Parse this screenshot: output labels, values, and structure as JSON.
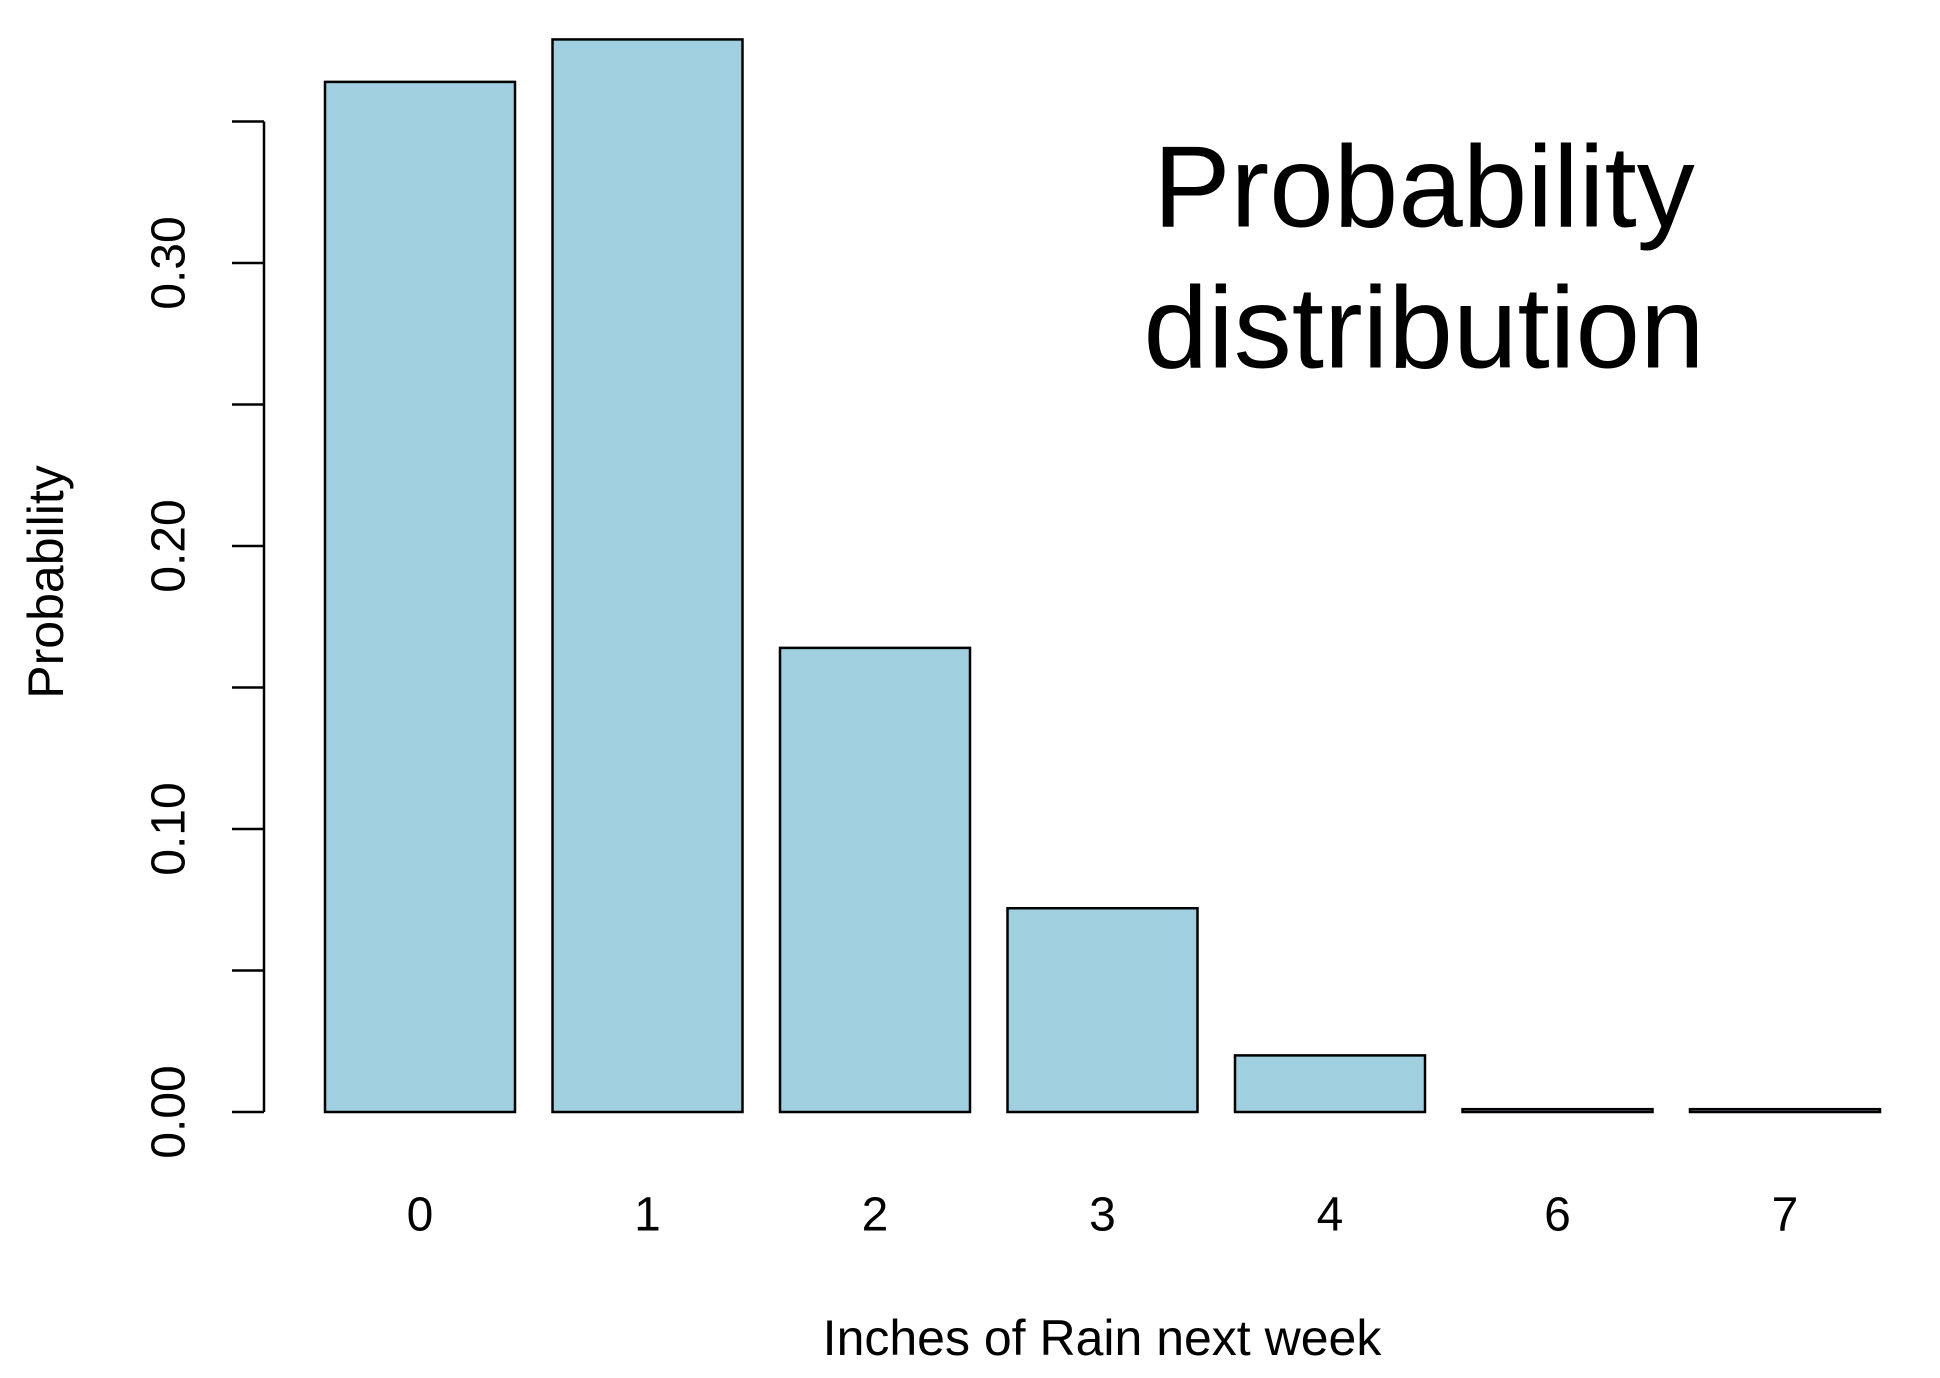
{
  "chart_data": {
    "type": "bar",
    "annotation": [
      "Probability",
      "distribution"
    ],
    "x_label": "Inches of Rain next week",
    "y_label": "Probability",
    "categories": [
      "0",
      "1",
      "2",
      "3",
      "4",
      "6",
      "7"
    ],
    "values": [
      0.364,
      0.379,
      0.164,
      0.072,
      0.02,
      0.001,
      0.001
    ],
    "color": "#a0cfe0",
    "ylim": [
      0,
      0.38
    ],
    "yticks": [
      {
        "value": 0,
        "label": "0.00"
      },
      {
        "value": 0.05,
        "label": null
      },
      {
        "value": 0.1,
        "label": "0.10"
      },
      {
        "value": 0.15,
        "label": null
      },
      {
        "value": 0.2,
        "label": "0.20"
      },
      {
        "value": 0.25,
        "label": null
      },
      {
        "value": 0.3,
        "label": "0.30"
      },
      {
        "value": 0.35,
        "label": null
      }
    ],
    "grid": false
  }
}
